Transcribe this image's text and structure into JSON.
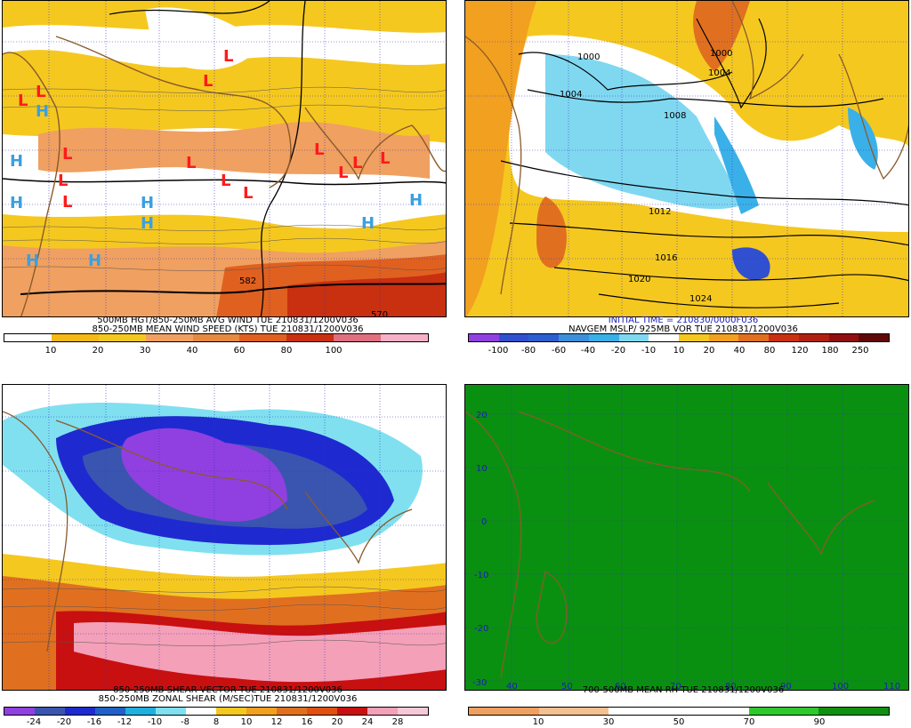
{
  "panels": {
    "p1": {
      "title1": "500MB HGT/850-250MB AVG WIND TUE 210831/1200V036",
      "title2": "850-250MB MEAN WIND SPEED (KTS) TUE 210831/1200V036",
      "ticks": [
        "10",
        "20",
        "30",
        "40",
        "60",
        "80",
        "100"
      ],
      "colors": [
        "#ffffff",
        "#f5b915",
        "#f5c820",
        "#f0a060",
        "#e58a40",
        "#e06020",
        "#c83010",
        "#e06f80",
        "#f8b0c8"
      ],
      "contour_labels": [
        "582",
        "570"
      ],
      "lows": 14,
      "highs": 9
    },
    "p2": {
      "title1": "INITIAL TIME = 210830/0000F036",
      "title2": "NAVGEM MSLP/ 925MB VOR TUE 210831/1200V036",
      "ticks": [
        "-100",
        "-80",
        "-60",
        "-40",
        "-20",
        "-10",
        "10",
        "20",
        "40",
        "80",
        "120",
        "180",
        "250"
      ],
      "colors": [
        "#9040e0",
        "#3050d0",
        "#2b5fd0",
        "#3c8fd8",
        "#3ab0e8",
        "#80d8f0",
        "#ffffff",
        "#f5c820",
        "#f2a020",
        "#e07020",
        "#c83010",
        "#b02010",
        "#901010"
      ],
      "isobars": [
        "1000",
        "1004",
        "1008",
        "1012",
        "1016",
        "1020",
        "1024",
        "1000",
        "1004"
      ]
    },
    "p3": {
      "title1": "850-250MB SHEAR VECTOR TUE 210831/1200V036",
      "title2": "850-250MB ZONAL SHEAR (M/SEC)TUE 210831/1200V036",
      "ticks": [
        "-24",
        "-20",
        "-16",
        "-12",
        "-10",
        "-8",
        "8",
        "10",
        "12",
        "16",
        "20",
        "24",
        "28"
      ],
      "colors": [
        "#9040e0",
        "#3a55b0",
        "#1e2ad0",
        "#2060c8",
        "#20b0e0",
        "#80e0f0",
        "#ffffff",
        "#f5c820",
        "#f2a020",
        "#e07020",
        "#e05010",
        "#c81010",
        "#f4a0b8",
        "#f8c8d8"
      ]
    },
    "p4": {
      "title1": "700-500MB MEAN RH TUE 210831/1200V036",
      "ticks": [
        "10",
        "30",
        "50",
        "70",
        "90"
      ],
      "colors": [
        "#f0a060",
        "#f5c090",
        "#ffffff",
        "#ffffff",
        "#2ec82e",
        "#109010"
      ]
    }
  },
  "axes": {
    "lon": [
      "40",
      "50",
      "60",
      "70",
      "80",
      "90",
      "100",
      "110"
    ],
    "lat": [
      "20",
      "10",
      "0",
      "-10",
      "-20",
      "-30"
    ]
  },
  "colors": {
    "land": "#8a5a2a",
    "grid": "#3030c0",
    "low": "#ff1a1a",
    "high": "#3aa0e0",
    "rh_green": "#0a9010"
  },
  "symbols": {
    "low": "L",
    "high": "H"
  }
}
